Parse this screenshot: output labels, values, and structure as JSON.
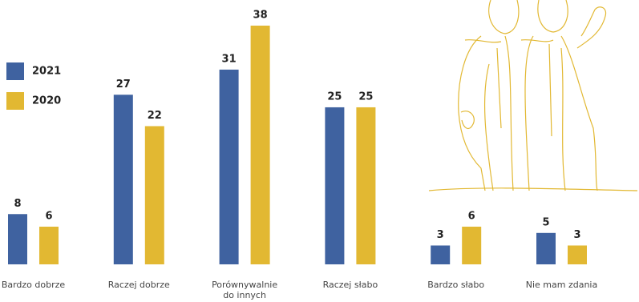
{
  "chart_data": {
    "type": "bar",
    "categories": [
      "Bardzo dobrze",
      "Raczej dobrze",
      "Porównywalnie do innych",
      "Raczej słabo",
      "Bardzo słabo",
      "Nie mam zdania"
    ],
    "series": [
      {
        "name": "2021",
        "color": "#3f62a0",
        "values": [
          8,
          27,
          31,
          25,
          3,
          5
        ]
      },
      {
        "name": "2020",
        "color": "#e2b832",
        "values": [
          6,
          22,
          38,
          25,
          6,
          3
        ]
      }
    ]
  }
}
